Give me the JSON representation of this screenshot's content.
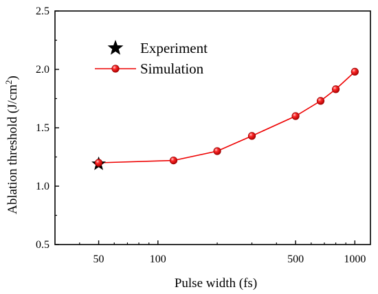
{
  "chart_data": {
    "type": "line",
    "title": "",
    "xlabel": "Pulse width (fs)",
    "ylabel_main": "Ablation threshold (J/cm",
    "ylabel_sup": "2",
    "ylabel_close": ")",
    "xscale": "log",
    "xlim": [
      30,
      1200
    ],
    "ylim": [
      0.5,
      2.5
    ],
    "xticks": [
      50,
      100,
      500,
      1000
    ],
    "xtick_labels": [
      "50",
      "100",
      "500",
      "1000"
    ],
    "yticks": [
      0.5,
      1.0,
      1.5,
      2.0,
      2.5
    ],
    "ytick_labels": [
      "0.5",
      "1.0",
      "1.5",
      "2.0",
      "2.5"
    ],
    "grid": false,
    "legend_position": "top-left",
    "series": [
      {
        "name": "Experiment",
        "marker": "star",
        "color": "#000000",
        "x": [
          50
        ],
        "y": [
          1.19
        ]
      },
      {
        "name": "Simulation",
        "marker": "circle",
        "color": "#ee0000",
        "x": [
          50,
          120,
          200,
          300,
          500,
          670,
          800,
          1000
        ],
        "y": [
          1.2,
          1.22,
          1.3,
          1.43,
          1.6,
          1.73,
          1.83,
          1.98
        ]
      }
    ]
  }
}
